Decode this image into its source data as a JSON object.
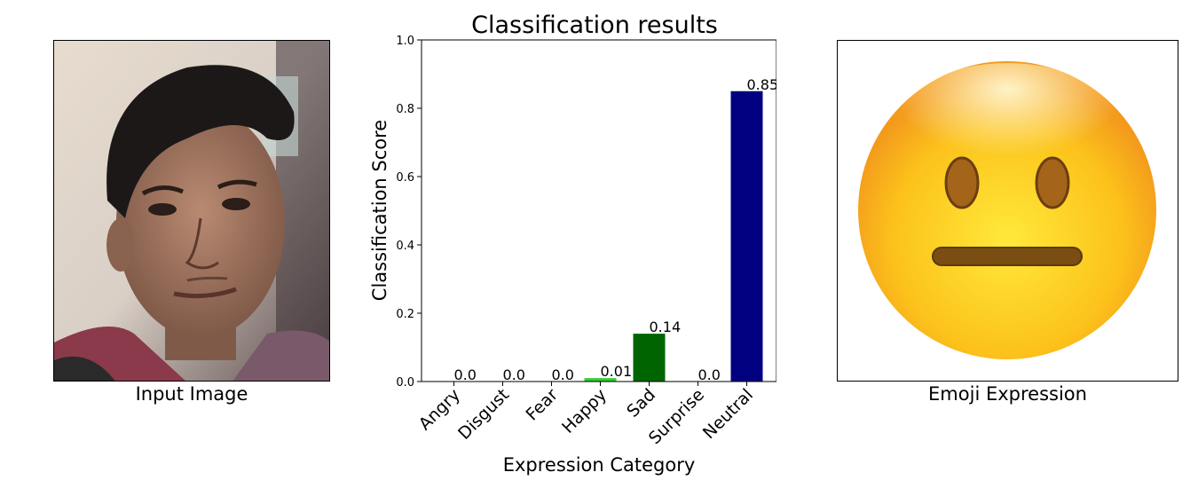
{
  "left_panel": {
    "caption": "Input Image"
  },
  "right_panel": {
    "caption": "Emoji Expression",
    "emoji_icon": "neutral-face-emoji"
  },
  "chart_data": {
    "type": "bar",
    "title": "Classification results",
    "xlabel": "Expression Category",
    "ylabel": "Classification Score",
    "categories": [
      "Angry",
      "Disgust",
      "Fear",
      "Happy",
      "Sad",
      "Surprise",
      "Neutral"
    ],
    "values": [
      0.0,
      0.0,
      0.0,
      0.01,
      0.14,
      0.0,
      0.85
    ],
    "data_labels": [
      "0.0",
      "0.0",
      "0.0",
      "0.01",
      "0.14",
      "0.0",
      "0.85"
    ],
    "colors": [
      "#ff0000",
      "#2e8b57",
      "#808080",
      "#32cd32",
      "#006400",
      "#ffd700",
      "#000080"
    ],
    "ylim": [
      0,
      1.0
    ],
    "yticks": [
      "0.0",
      "0.2",
      "0.4",
      "0.6",
      "0.8",
      "1.0"
    ],
    "grid": false,
    "legend": "none"
  }
}
